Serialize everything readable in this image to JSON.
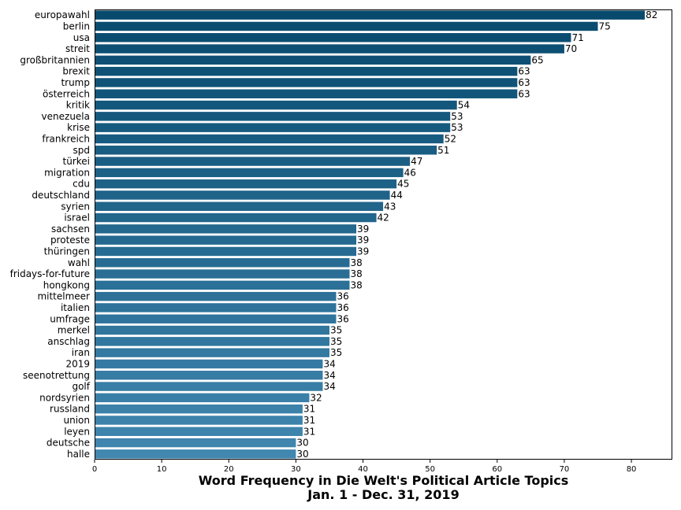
{
  "chart_data": {
    "type": "bar",
    "orientation": "horizontal",
    "categories": [
      "europawahl",
      "berlin",
      "usa",
      "streit",
      "großbritannien",
      "brexit",
      "trump",
      "österreich",
      "kritik",
      "venezuela",
      "krise",
      "frankreich",
      "spd",
      "türkei",
      "migration",
      "cdu",
      "deutschland",
      "syrien",
      "israel",
      "sachsen",
      "proteste",
      "thüringen",
      "wahl",
      "fridays-for-future",
      "hongkong",
      "mittelmeer",
      "italien",
      "umfrage",
      "merkel",
      "anschlag",
      "iran",
      "2019",
      "seenotrettung",
      "golf",
      "nordsyrien",
      "russland",
      "union",
      "leyen",
      "deutsche",
      "halle"
    ],
    "values": [
      82,
      75,
      71,
      70,
      65,
      63,
      63,
      63,
      54,
      53,
      53,
      52,
      51,
      47,
      46,
      45,
      44,
      43,
      42,
      39,
      39,
      39,
      38,
      38,
      38,
      36,
      36,
      36,
      35,
      35,
      35,
      34,
      34,
      34,
      32,
      31,
      31,
      31,
      30,
      30
    ],
    "xlabel_line1": "Word Frequency in Die Welt's Political Article Topics",
    "xlabel_line2": "Jan. 1 - Dec. 31, 2019",
    "xlim": [
      0,
      86.1
    ],
    "xticks": [
      0,
      10,
      20,
      30,
      40,
      50,
      60,
      70,
      80
    ],
    "bar_color_start": "#084a6e",
    "bar_color_end": "#4187b0",
    "grid": false,
    "data_labels": true
  }
}
